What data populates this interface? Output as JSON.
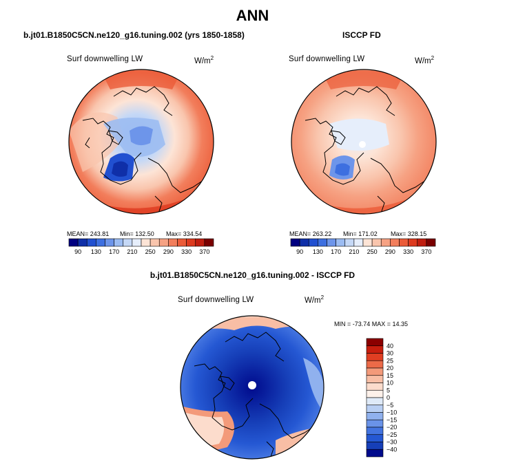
{
  "title": "ANN",
  "panels": [
    {
      "title": "b.jt01.B1850C5CN.ne120_g16.tuning.002 (yrs 1850-1858)",
      "variable": "Surf downwelling LW",
      "units": "W/m",
      "units_sup": "2",
      "mean_label": "MEAN= 243.81",
      "min_label": "Min= 132.50",
      "max_label": "Max= 334.54"
    },
    {
      "title": "ISCCP FD",
      "variable": "Surf downwelling LW",
      "units": "W/m",
      "units_sup": "2",
      "mean_label": "MEAN= 263.22",
      "min_label": "Min= 171.02",
      "max_label": "Max= 328.15"
    },
    {
      "title": "b.jt01.B1850C5CN.ne120_g16.tuning.002 - ISCCP FD",
      "variable": "Surf downwelling LW",
      "units": "W/m",
      "units_sup": "2",
      "minmax_label": "MIN = -73.74 MAX =  14.35"
    }
  ],
  "chart_data": [
    {
      "type": "heatmap",
      "projection": "polar-stereographic north",
      "title": "b.jt01.B1850C5CN.ne120_g16.tuning.002 (yrs 1850-1858)",
      "variable": "Surf downwelling LW",
      "units": "W/m2",
      "mean": 243.81,
      "min": 132.5,
      "max": 334.54,
      "colorbar_levels": [
        90,
        130,
        170,
        210,
        250,
        290,
        330,
        370
      ],
      "colors": [
        "#000080",
        "#0f2fa8",
        "#2150d0",
        "#3d6fe0",
        "#6d95ea",
        "#9cbcf2",
        "#c5d8f6",
        "#e6eefb",
        "#fde4d6",
        "#f9c5ad",
        "#f6a283",
        "#f27e5c",
        "#eb5b38",
        "#dd3a1f",
        "#c01e10",
        "#7a0000"
      ]
    },
    {
      "type": "heatmap",
      "projection": "polar-stereographic north",
      "title": "ISCCP FD",
      "variable": "Surf downwelling LW",
      "units": "W/m2",
      "mean": 263.22,
      "min": 171.02,
      "max": 328.15,
      "colorbar_levels": [
        90,
        130,
        170,
        210,
        250,
        290,
        330,
        370
      ],
      "colors": [
        "#000080",
        "#0f2fa8",
        "#2150d0",
        "#3d6fe0",
        "#6d95ea",
        "#9cbcf2",
        "#c5d8f6",
        "#e6eefb",
        "#fde4d6",
        "#f9c5ad",
        "#f6a283",
        "#f27e5c",
        "#eb5b38",
        "#dd3a1f",
        "#c01e10",
        "#7a0000"
      ]
    },
    {
      "type": "heatmap",
      "projection": "polar-stereographic north",
      "title": "b.jt01.B1850C5CN.ne120_g16.tuning.002 - ISCCP FD",
      "variable": "Surf downwelling LW",
      "units": "W/m2",
      "min": -73.74,
      "max": 14.35,
      "colorbar_levels": [
        40,
        30,
        25,
        20,
        15,
        10,
        5,
        0,
        -5,
        -10,
        -15,
        -20,
        -25,
        -30,
        -40
      ],
      "colors": [
        "#8b0000",
        "#c81e0e",
        "#e03e22",
        "#ec6a48",
        "#f39a7a",
        "#f8bea5",
        "#fcdccc",
        "#fdf1ea",
        "#dfeaf8",
        "#b9cff3",
        "#90b1ee",
        "#6a93e8",
        "#4374e0",
        "#2558d3",
        "#163fb8",
        "#000a8c"
      ]
    }
  ]
}
